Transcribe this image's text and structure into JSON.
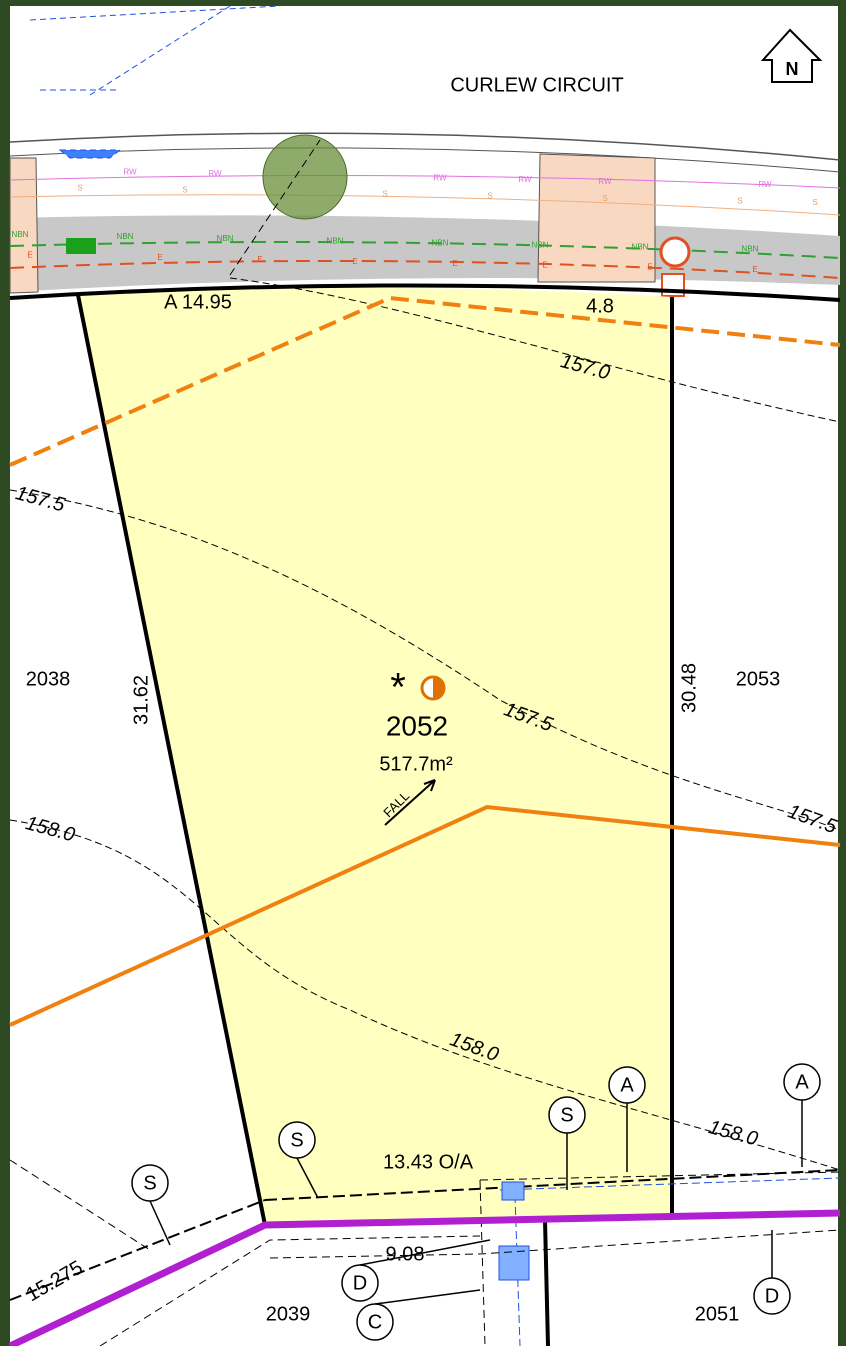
{
  "road_name": "CURLEW CIRCUIT",
  "north": "N",
  "lot": {
    "number": "2052",
    "area": "517.7m²",
    "symbol": "*",
    "fall": "FALL"
  },
  "neighbours": [
    "2038",
    "2053",
    "2039",
    "2051"
  ],
  "dimensions": [
    "A 14.95",
    "4.8",
    "31.62",
    "30.48",
    "13.43 O/A",
    "9.08",
    "15.275"
  ],
  "contours": [
    "157.0",
    "157.5",
    "157.5",
    "157.5",
    "158.0",
    "158.0",
    "158.0"
  ],
  "markers": [
    "S",
    "S",
    "S",
    "A",
    "A",
    "D",
    "C",
    "D"
  ],
  "service_labels": [
    "RW",
    "S",
    "NBN",
    "E"
  ]
}
